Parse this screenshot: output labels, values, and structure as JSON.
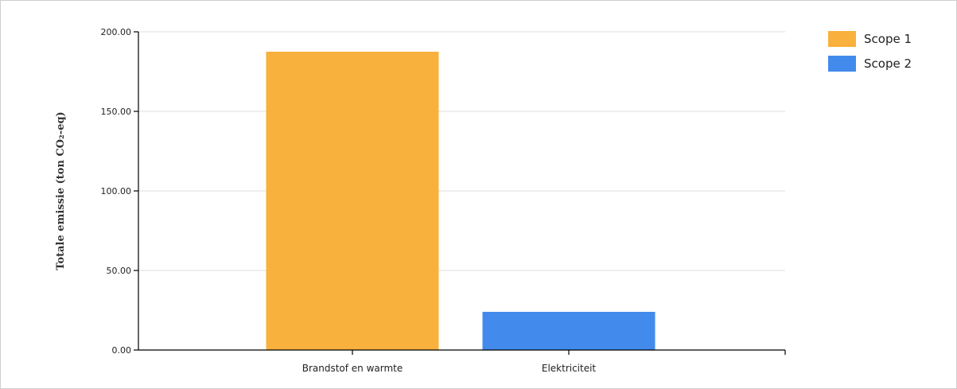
{
  "chart_data": {
    "type": "bar",
    "categories": [
      "Brandstof en warmte",
      "Elektriciteit"
    ],
    "values": [
      187.5,
      24.0
    ],
    "bar_series": [
      "Scope 1",
      "Scope 2"
    ],
    "series": [
      {
        "name": "Scope 1",
        "color": "#f9b13d"
      },
      {
        "name": "Scope 2",
        "color": "#428bec"
      }
    ],
    "ylabel": "Totale emissie (ton CO₂-eq)",
    "xlabel": "",
    "ylim": [
      0,
      200
    ],
    "yticks": [
      0,
      50,
      100,
      150,
      200
    ],
    "ytick_labels": [
      "0.00",
      "50.00",
      "100.00",
      "150.00",
      "200.00"
    ],
    "grid": true,
    "legend_position": "top-right"
  }
}
